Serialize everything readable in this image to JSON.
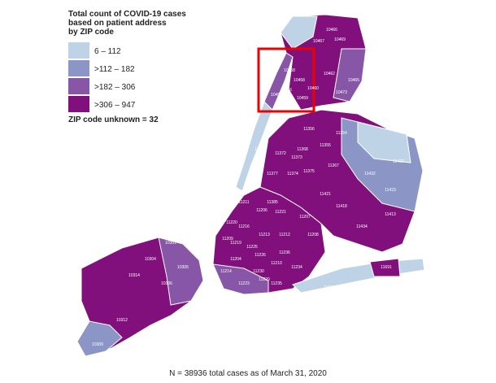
{
  "legend": {
    "title": [
      "Total count of COVID-19 cases",
      "based on patient address",
      "by ZIP code"
    ],
    "items": [
      {
        "label": "6 – 112",
        "color": "#bfd3e6"
      },
      {
        "label": ">112 – 182",
        "color": "#8c96c6"
      },
      {
        "label": ">182 – 306",
        "color": "#8856a7"
      },
      {
        "label": ">306 – 947",
        "color": "#810f7c"
      }
    ],
    "unknown": "ZIP code unknown = 32"
  },
  "zips": [
    "10466",
    "10467",
    "10469",
    "10463",
    "10468",
    "10458",
    "10462",
    "10460",
    "10456",
    "10459",
    "10452",
    "10473",
    "10465",
    "11356",
    "11368",
    "11354",
    "11372",
    "11373",
    "11355",
    "11377",
    "11101",
    "11374",
    "11375",
    "11367",
    "11432",
    "11427",
    "11423",
    "11385",
    "11421",
    "11418",
    "11434",
    "11413",
    "11211",
    "11206",
    "11221",
    "11207",
    "11208",
    "11216",
    "11213",
    "11212",
    "11225",
    "11236",
    "11226",
    "11210",
    "11234",
    "11219",
    "11204",
    "11230",
    "11229",
    "11223",
    "11235",
    "11214",
    "11209",
    "11220",
    "11691",
    "11694",
    "10314",
    "10312",
    "10309",
    "10306",
    "10305",
    "10304",
    "10301"
  ],
  "footer": "N = 38936 total cases as of March 31, 2020"
}
